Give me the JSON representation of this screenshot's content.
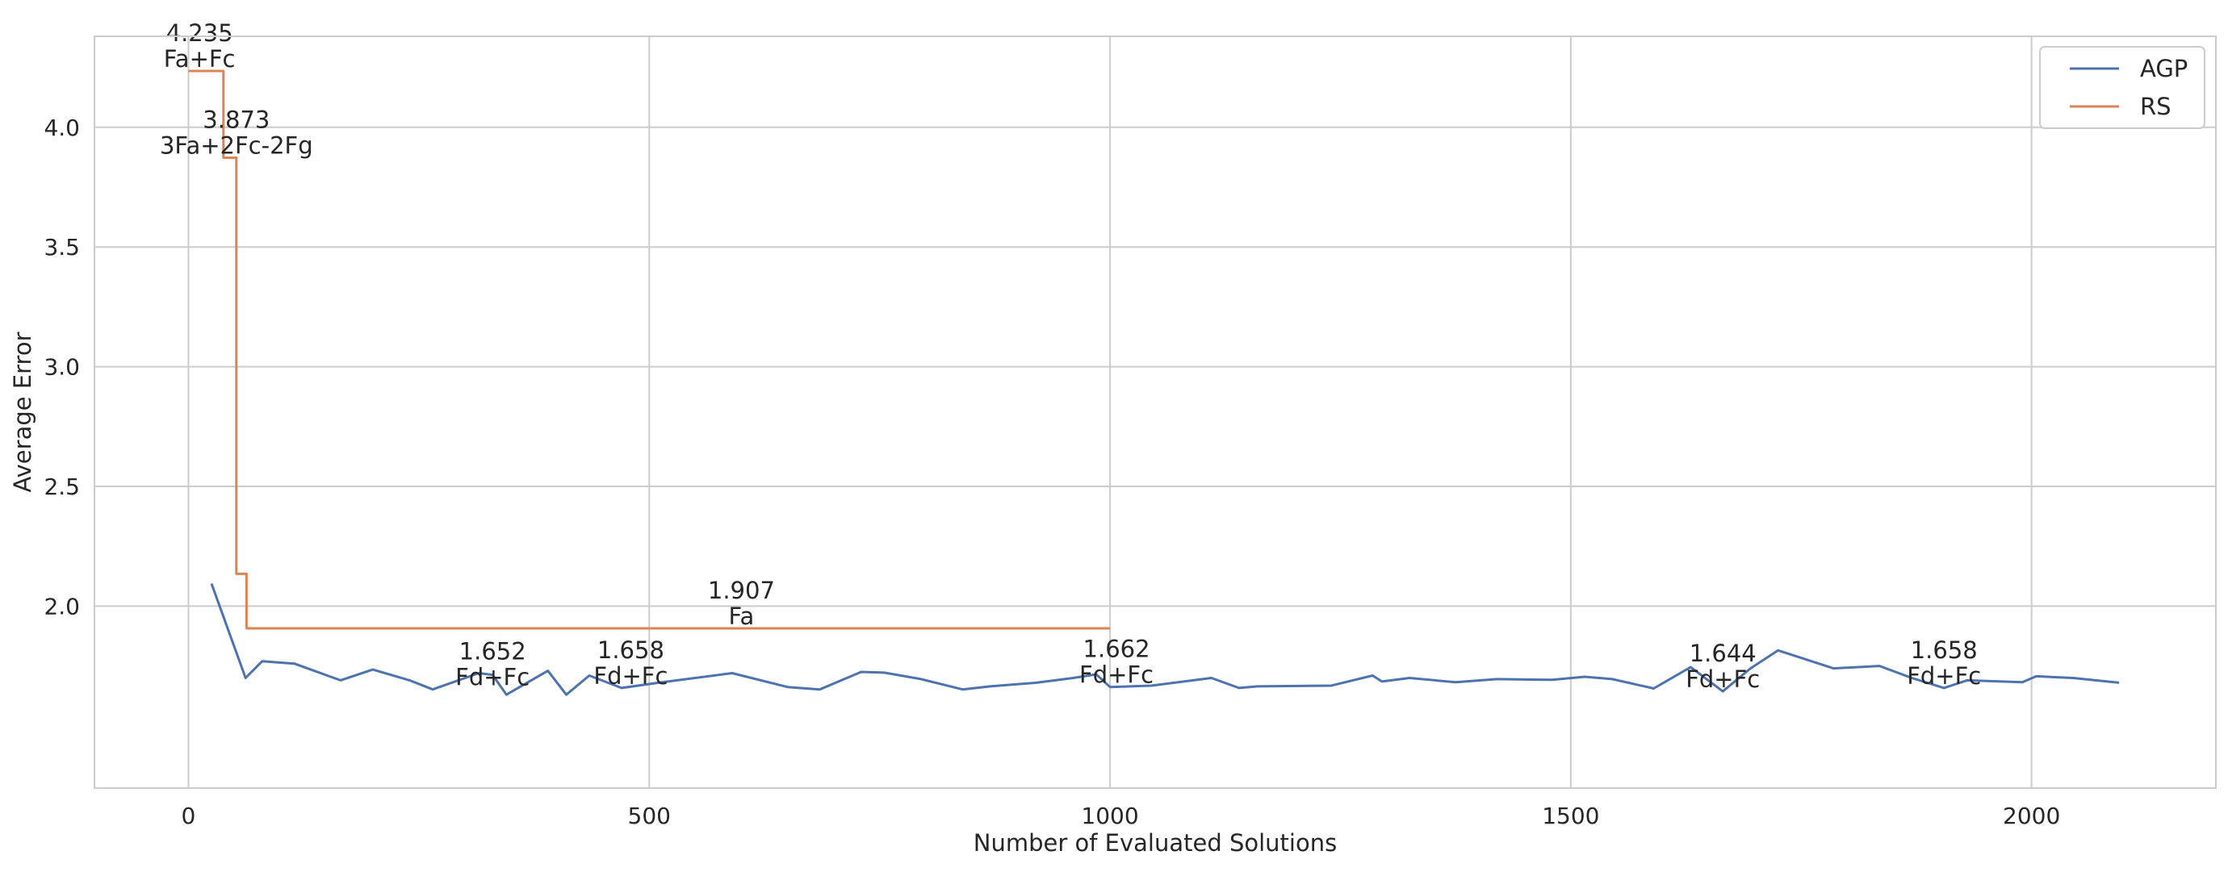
{
  "chart_data": {
    "type": "line",
    "title": "",
    "xlabel": "Number of Evaluated Solutions",
    "ylabel": "Average Error",
    "xlim": [
      -102,
      2200
    ],
    "ylim": [
      1.24,
      4.38
    ],
    "xticks": [
      0,
      500,
      1000,
      1500,
      2000
    ],
    "yticks": [
      2.0,
      2.5,
      3.0,
      3.5,
      4.0
    ],
    "xtick_labels": [
      "0",
      "500",
      "1000",
      "1500",
      "2000"
    ],
    "ytick_labels": [
      "2.0",
      "2.5",
      "3.0",
      "3.5",
      "4.0"
    ],
    "grid": true,
    "legend_position": "top-right",
    "series": [
      {
        "name": "AGP",
        "color": "#4c72b0",
        "step": false,
        "x": [
          25,
          62,
          80,
          115,
          165,
          200,
          240,
          265,
          315,
          330,
          345,
          390,
          410,
          435,
          470,
          510,
          590,
          650,
          685,
          730,
          755,
          795,
          840,
          870,
          920,
          960,
          985,
          1000,
          1045,
          1110,
          1140,
          1160,
          1240,
          1285,
          1295,
          1325,
          1375,
          1420,
          1480,
          1515,
          1545,
          1590,
          1630,
          1665,
          1695,
          1725,
          1785,
          1835,
          1870,
          1905,
          1930,
          1990,
          2005,
          2045,
          2095
        ],
        "y": [
          2.094,
          1.7,
          1.77,
          1.76,
          1.69,
          1.735,
          1.69,
          1.652,
          1.72,
          1.713,
          1.63,
          1.73,
          1.63,
          1.71,
          1.658,
          1.68,
          1.72,
          1.662,
          1.652,
          1.725,
          1.722,
          1.695,
          1.652,
          1.665,
          1.68,
          1.7,
          1.715,
          1.662,
          1.668,
          1.7,
          1.658,
          1.665,
          1.668,
          1.71,
          1.685,
          1.7,
          1.682,
          1.695,
          1.692,
          1.705,
          1.695,
          1.656,
          1.745,
          1.644,
          1.74,
          1.815,
          1.74,
          1.75,
          1.7,
          1.658,
          1.69,
          1.682,
          1.707,
          1.7,
          1.68
        ]
      },
      {
        "name": "RS",
        "color": "#dd8452",
        "step": true,
        "x": [
          0,
          38,
          38,
          52,
          52,
          56,
          56,
          63,
          63,
          1000
        ],
        "y": [
          4.235,
          4.235,
          3.873,
          3.873,
          2.135,
          2.135,
          2.135,
          2.135,
          1.907,
          1.907
        ]
      }
    ],
    "annotations": [
      {
        "x": 12,
        "y": 4.235,
        "value": "4.235",
        "label": "Fa+Fc"
      },
      {
        "x": 52,
        "y": 3.873,
        "value": "3.873",
        "label": "3Fa+2Fc-2Fg"
      },
      {
        "x": 600,
        "y": 1.907,
        "value": "1.907",
        "label": "Fa"
      },
      {
        "x": 330,
        "y": 1.652,
        "value": "1.652",
        "label": "Fd+Fc"
      },
      {
        "x": 480,
        "y": 1.658,
        "value": "1.658",
        "label": "Fd+Fc"
      },
      {
        "x": 1007,
        "y": 1.662,
        "value": "1.662",
        "label": "Fd+Fc"
      },
      {
        "x": 1665,
        "y": 1.644,
        "value": "1.644",
        "label": "Fd+Fc"
      },
      {
        "x": 1905,
        "y": 1.658,
        "value": "1.658",
        "label": "Fd+Fc"
      }
    ]
  }
}
